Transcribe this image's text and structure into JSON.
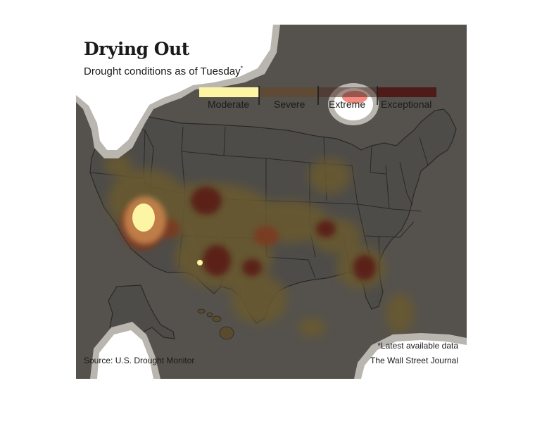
{
  "title": "Drying Out",
  "subtitle": "Drought conditions as of Tuesday",
  "subtitle_mark": "*",
  "legend": [
    {
      "label": "Moderate",
      "color": "#fbf5a4"
    },
    {
      "label": "Severe",
      "color": "#5e4a35"
    },
    {
      "label": "Extreme",
      "color": "#4d2b22"
    },
    {
      "label": "Exceptional",
      "color": "#4e1b18"
    }
  ],
  "source": "Source: U.S. Drought Monitor",
  "note": "*Latest available data",
  "credit": "The Wall Street Journal",
  "colors": {
    "background": "#55524d",
    "state_fill": "#4d4b48",
    "state_border": "#2a2927",
    "highlight": "#ffffff"
  }
}
